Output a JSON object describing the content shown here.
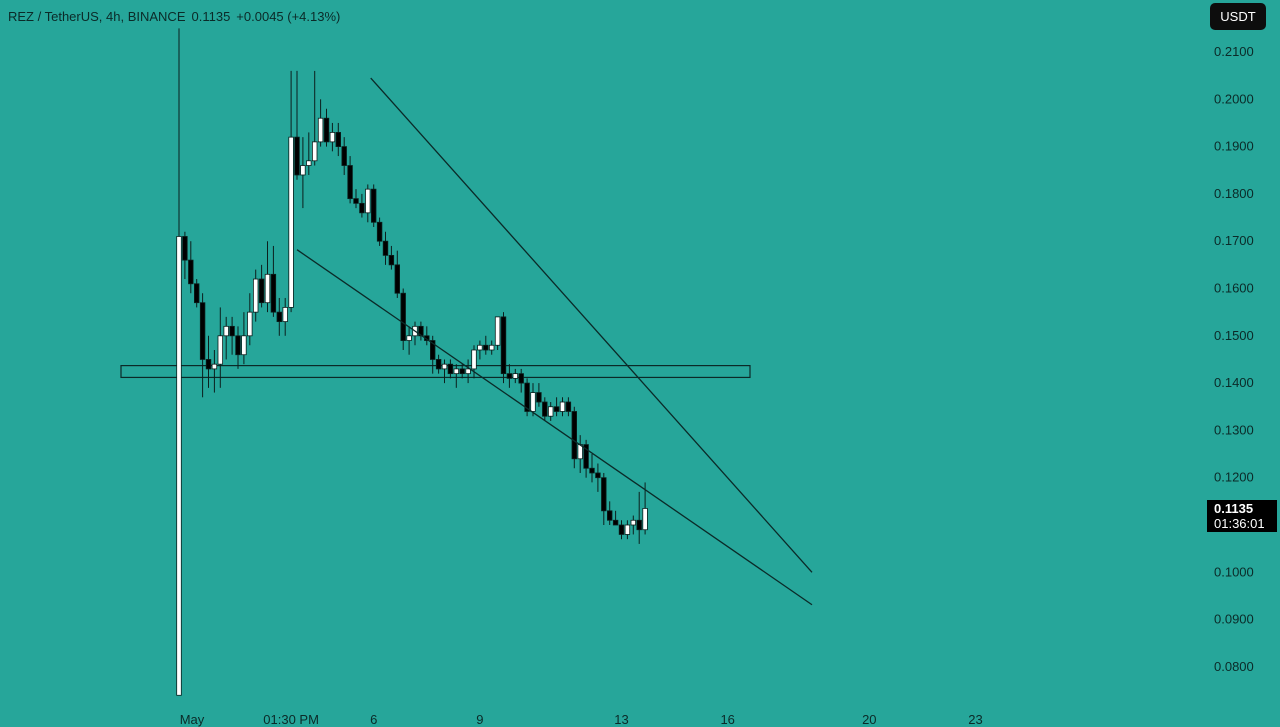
{
  "header": {
    "symbol": "REZ / TetherUS, 4h, BINANCE",
    "last": "0.1135",
    "change": "+0.0045 (+4.13%)"
  },
  "unit_button": "USDT",
  "current_price": {
    "value": "0.1135",
    "countdown": "01:36:01"
  },
  "colors": {
    "background": "#26a69a",
    "up": "#ffffff",
    "down": "#000000",
    "lines": "#0b2a28"
  },
  "chart_data": {
    "type": "candlestick",
    "title": "REZ / TetherUS, 4h, BINANCE",
    "ylim": [
      0.074,
      0.2135
    ],
    "y_ticks": [
      "0.2100",
      "0.2000",
      "0.1900",
      "0.1800",
      "0.1700",
      "0.1600",
      "0.1500",
      "0.1400",
      "0.1300",
      "0.1200",
      "0.1000",
      "0.0900",
      "0.0800"
    ],
    "x_ticks": [
      {
        "label": "May",
        "i": 0
      },
      {
        "label": "01:30 PM",
        "i": 19
      },
      {
        "label": "6",
        "i": 33
      },
      {
        "label": "9",
        "i": 51
      },
      {
        "label": "13",
        "i": 75
      },
      {
        "label": "16",
        "i": 93
      },
      {
        "label": "20",
        "i": 117
      },
      {
        "label": "23",
        "i": 135
      }
    ],
    "candles": [
      [
        0.074,
        0.215,
        0.074,
        0.171
      ],
      [
        0.171,
        0.172,
        0.162,
        0.166
      ],
      [
        0.166,
        0.17,
        0.159,
        0.161
      ],
      [
        0.161,
        0.162,
        0.156,
        0.157
      ],
      [
        0.157,
        0.159,
        0.137,
        0.145
      ],
      [
        0.145,
        0.15,
        0.139,
        0.143
      ],
      [
        0.143,
        0.147,
        0.138,
        0.144
      ],
      [
        0.144,
        0.156,
        0.139,
        0.15
      ],
      [
        0.15,
        0.154,
        0.145,
        0.152
      ],
      [
        0.152,
        0.154,
        0.146,
        0.15
      ],
      [
        0.15,
        0.152,
        0.143,
        0.146
      ],
      [
        0.146,
        0.155,
        0.144,
        0.15
      ],
      [
        0.15,
        0.159,
        0.148,
        0.155
      ],
      [
        0.155,
        0.164,
        0.153,
        0.162
      ],
      [
        0.162,
        0.165,
        0.156,
        0.157
      ],
      [
        0.157,
        0.17,
        0.155,
        0.163
      ],
      [
        0.163,
        0.169,
        0.154,
        0.155
      ],
      [
        0.155,
        0.158,
        0.15,
        0.153
      ],
      [
        0.153,
        0.158,
        0.15,
        0.156
      ],
      [
        0.156,
        0.206,
        0.155,
        0.192
      ],
      [
        0.192,
        0.206,
        0.183,
        0.184
      ],
      [
        0.184,
        0.192,
        0.177,
        0.186
      ],
      [
        0.186,
        0.193,
        0.184,
        0.187
      ],
      [
        0.187,
        0.206,
        0.186,
        0.191
      ],
      [
        0.191,
        0.2,
        0.19,
        0.196
      ],
      [
        0.196,
        0.198,
        0.19,
        0.191
      ],
      [
        0.191,
        0.195,
        0.189,
        0.193
      ],
      [
        0.193,
        0.195,
        0.188,
        0.19
      ],
      [
        0.19,
        0.192,
        0.184,
        0.186
      ],
      [
        0.186,
        0.188,
        0.178,
        0.179
      ],
      [
        0.179,
        0.181,
        0.177,
        0.178
      ],
      [
        0.178,
        0.18,
        0.175,
        0.176
      ],
      [
        0.176,
        0.182,
        0.174,
        0.181
      ],
      [
        0.181,
        0.182,
        0.173,
        0.174
      ],
      [
        0.174,
        0.175,
        0.169,
        0.17
      ],
      [
        0.17,
        0.172,
        0.165,
        0.167
      ],
      [
        0.167,
        0.169,
        0.164,
        0.165
      ],
      [
        0.165,
        0.168,
        0.158,
        0.159
      ],
      [
        0.159,
        0.16,
        0.147,
        0.149
      ],
      [
        0.149,
        0.152,
        0.146,
        0.15
      ],
      [
        0.15,
        0.153,
        0.148,
        0.152
      ],
      [
        0.152,
        0.153,
        0.149,
        0.15
      ],
      [
        0.15,
        0.152,
        0.148,
        0.149
      ],
      [
        0.149,
        0.15,
        0.142,
        0.145
      ],
      [
        0.145,
        0.146,
        0.142,
        0.143
      ],
      [
        0.143,
        0.145,
        0.14,
        0.144
      ],
      [
        0.144,
        0.145,
        0.141,
        0.142
      ],
      [
        0.142,
        0.144,
        0.139,
        0.143
      ],
      [
        0.143,
        0.144,
        0.141,
        0.142
      ],
      [
        0.142,
        0.145,
        0.14,
        0.143
      ],
      [
        0.143,
        0.148,
        0.141,
        0.147
      ],
      [
        0.147,
        0.149,
        0.145,
        0.148
      ],
      [
        0.148,
        0.15,
        0.146,
        0.147
      ],
      [
        0.147,
        0.149,
        0.146,
        0.148
      ],
      [
        0.148,
        0.154,
        0.147,
        0.154
      ],
      [
        0.154,
        0.155,
        0.14,
        0.142
      ],
      [
        0.142,
        0.144,
        0.139,
        0.141
      ],
      [
        0.141,
        0.143,
        0.14,
        0.142
      ],
      [
        0.142,
        0.143,
        0.138,
        0.14
      ],
      [
        0.14,
        0.141,
        0.133,
        0.134
      ],
      [
        0.134,
        0.14,
        0.133,
        0.138
      ],
      [
        0.138,
        0.14,
        0.135,
        0.136
      ],
      [
        0.136,
        0.137,
        0.132,
        0.133
      ],
      [
        0.133,
        0.136,
        0.132,
        0.135
      ],
      [
        0.135,
        0.137,
        0.133,
        0.134
      ],
      [
        0.134,
        0.137,
        0.133,
        0.136
      ],
      [
        0.136,
        0.137,
        0.133,
        0.134
      ],
      [
        0.134,
        0.135,
        0.122,
        0.124
      ],
      [
        0.124,
        0.129,
        0.121,
        0.127
      ],
      [
        0.127,
        0.128,
        0.12,
        0.122
      ],
      [
        0.122,
        0.125,
        0.119,
        0.121
      ],
      [
        0.121,
        0.123,
        0.117,
        0.12
      ],
      [
        0.12,
        0.121,
        0.11,
        0.113
      ],
      [
        0.113,
        0.115,
        0.11,
        0.111
      ],
      [
        0.111,
        0.113,
        0.11,
        0.11
      ],
      [
        0.11,
        0.111,
        0.107,
        0.108
      ],
      [
        0.108,
        0.111,
        0.107,
        0.11
      ],
      [
        0.11,
        0.112,
        0.108,
        0.111
      ],
      [
        0.111,
        0.117,
        0.106,
        0.109
      ],
      [
        0.109,
        0.119,
        0.108,
        0.1135
      ]
    ],
    "trendlines": [
      {
        "name": "upper",
        "x1": 32.5,
        "y1": 0.2045,
        "x2": 100,
        "y2": 0.1
      },
      {
        "name": "lower",
        "x1": 20,
        "y1": 0.1682,
        "x2": 100,
        "y2": 0.0942
      }
    ],
    "zone": {
      "x1": -10,
      "x2": 90,
      "top": 0.1437,
      "bottom": 0.1412
    }
  }
}
